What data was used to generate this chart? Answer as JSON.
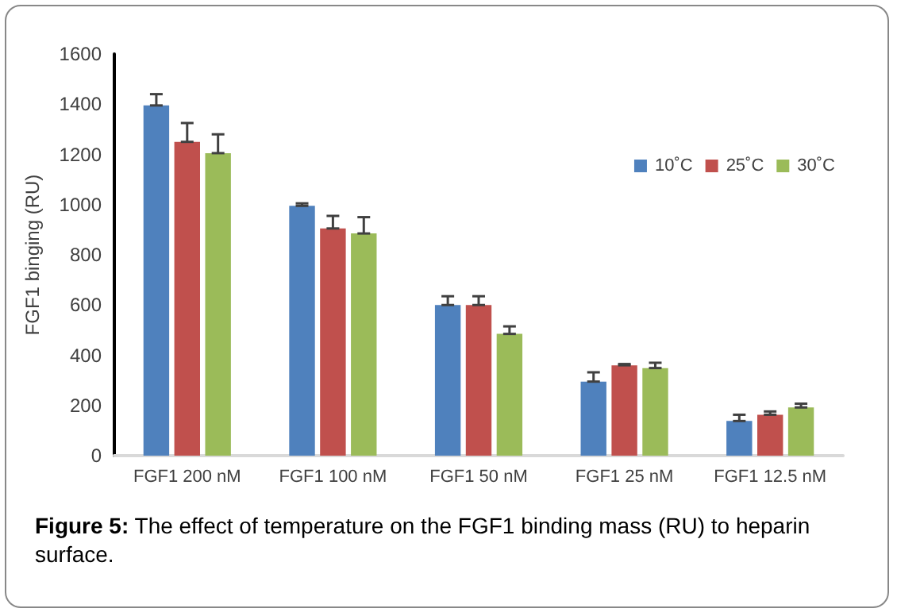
{
  "chart_data": {
    "type": "bar",
    "ylabel": "FGF1 binging (RU)",
    "categories": [
      "FGF1 200 nM",
      "FGF1 100 nM",
      "FGF1 50 nM",
      "FGF1 25 nM",
      "FGF1 12.5 nM"
    ],
    "series": [
      {
        "name": "10˚C",
        "color": "#4f81bd",
        "values": [
          1395,
          995,
          600,
          295,
          138
        ],
        "errors": [
          [
            1395,
            1440
          ],
          [
            995,
            1005
          ],
          [
            600,
            635
          ],
          [
            295,
            332
          ],
          [
            138,
            163
          ]
        ]
      },
      {
        "name": "25˚C",
        "color": "#c0504d",
        "values": [
          1250,
          905,
          600,
          360,
          163
        ],
        "errors": [
          [
            1250,
            1325
          ],
          [
            905,
            955
          ],
          [
            600,
            635
          ],
          [
            360,
            365
          ],
          [
            163,
            176
          ]
        ]
      },
      {
        "name": "30˚C",
        "color": "#9bbb59",
        "values": [
          1205,
          885,
          485,
          349,
          192
        ],
        "errors": [
          [
            1205,
            1280
          ],
          [
            885,
            950
          ],
          [
            485,
            515
          ],
          [
            349,
            370
          ],
          [
            192,
            207
          ]
        ]
      }
    ],
    "ylim": [
      0,
      1600
    ],
    "yticks": [
      0,
      200,
      400,
      600,
      800,
      1000,
      1200,
      1400,
      1600
    ],
    "grid": false,
    "legend": "top right",
    "annotations": [
      "Figure 5: The effect of temperature on the FGF1 binding mass (RU) to heparin surface."
    ]
  }
}
